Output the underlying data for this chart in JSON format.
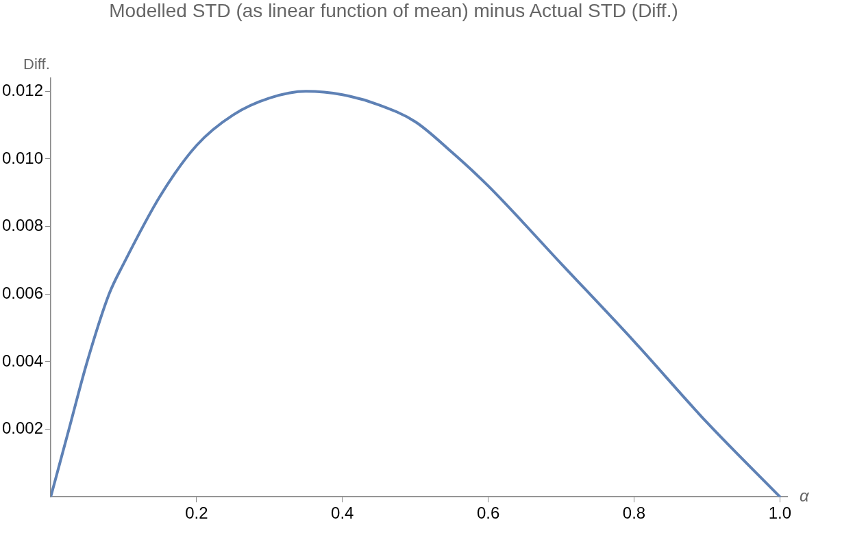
{
  "chart_data": {
    "type": "line",
    "title": "Modelled STD (as linear function of mean) minus Actual STD (Diff.)",
    "xlabel": "α",
    "ylabel": "Diff.",
    "xlim": [
      0,
      1.01
    ],
    "ylim": [
      0,
      0.0124
    ],
    "xticks": [
      0.2,
      0.4,
      0.6,
      0.8,
      {
        "value": 1,
        "label": "1.0"
      }
    ],
    "yticks": [
      0.002,
      0.004,
      0.006,
      0.008,
      {
        "value": 0.01,
        "label": "0.010"
      },
      0.012
    ],
    "grid": false,
    "legend": false,
    "marker": "none",
    "line_style": "solid",
    "series": [
      {
        "color": "#5e81b5",
        "x": [
          0,
          0.025,
          0.05,
          0.08,
          0.1,
          0.15,
          0.2,
          0.25,
          0.3,
          0.35,
          0.4,
          0.45,
          0.5,
          0.55,
          0.6,
          0.7,
          0.8,
          0.9,
          1.0
        ],
        "values": [
          0,
          0.002,
          0.004,
          0.006,
          0.0069,
          0.0089,
          0.0104,
          0.0113,
          0.0118,
          0.012,
          0.0119,
          0.0116,
          0.0111,
          0.0102,
          0.0092,
          0.0069,
          0.0046,
          0.0022,
          0
        ]
      }
    ]
  }
}
